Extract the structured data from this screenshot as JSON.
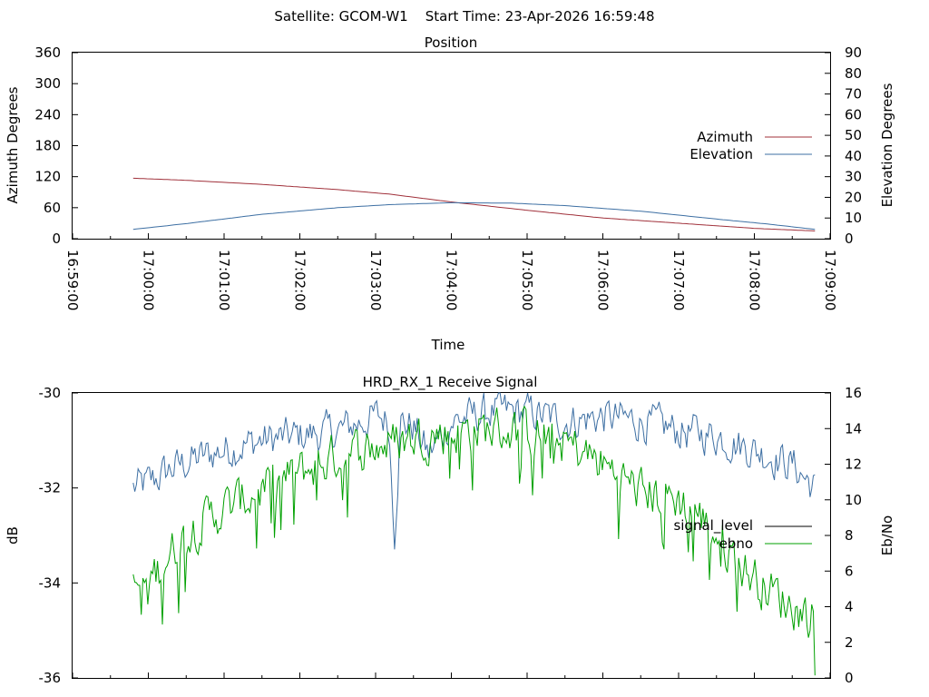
{
  "figure_title": "Satellite: GCOM-W1    Start Time: 23-Apr-2026 16:59:48",
  "colors": {
    "azimuth": "#a0303a",
    "elevation": "#3d6fa3",
    "signal_level": "#3d6fa3",
    "signal_level_legend": "#000000",
    "ebno": "#00a000"
  },
  "chart_data": [
    {
      "id": "position",
      "type": "line",
      "title": "Position",
      "xlabel": "Time",
      "ylabel": "Azimuth Degrees",
      "y2label": "Elevation Degrees",
      "xlim_minutes": [
        0,
        10
      ],
      "ylim": [
        0,
        360
      ],
      "y2lim": [
        0,
        90
      ],
      "yticks": [
        0,
        60,
        120,
        180,
        240,
        300,
        360
      ],
      "y2ticks": [
        0,
        10,
        20,
        30,
        40,
        50,
        60,
        70,
        80,
        90
      ],
      "xtick_labels": [
        "16:59:00",
        "17:00:00",
        "17:01:00",
        "17:02:00",
        "17:03:00",
        "17:04:00",
        "17:05:00",
        "17:06:00",
        "17:07:00",
        "17:08:00",
        "17:09:00"
      ],
      "legend_position": "center-right",
      "series": [
        {
          "name": "Azimuth",
          "axis": "left",
          "x_minutes": [
            0.8,
            1.5,
            2.5,
            3.5,
            4.2,
            5.0,
            6.0,
            7.0,
            8.0,
            9.0,
            9.8
          ],
          "values": [
            117,
            113,
            105,
            95,
            86,
            71,
            55,
            40,
            30,
            20,
            15
          ]
        },
        {
          "name": "Elevation",
          "axis": "right",
          "x_minutes": [
            0.8,
            1.5,
            2.5,
            3.5,
            4.2,
            5.0,
            5.8,
            6.5,
            7.5,
            8.5,
            9.2,
            9.8
          ],
          "values": [
            4.5,
            7.3,
            11.8,
            15.0,
            16.5,
            17.4,
            17.2,
            16.0,
            13.3,
            9.5,
            7.0,
            4.5
          ]
        }
      ]
    },
    {
      "id": "receive-signal",
      "type": "line",
      "title": "HRD_RX_1 Receive Signal",
      "ylabel": "dB",
      "y2label": "Eb/No",
      "xlim_minutes": [
        0,
        10
      ],
      "ylim": [
        -36,
        -30
      ],
      "y2lim": [
        0,
        16
      ],
      "yticks": [
        -36,
        -34,
        -32,
        -30
      ],
      "y2ticks": [
        0,
        2,
        4,
        6,
        8,
        10,
        12,
        14,
        16
      ],
      "legend_position": "center-right",
      "series": [
        {
          "name": "signal_level",
          "axis": "left",
          "x_minutes": [
            0.8,
            1.0,
            1.3,
            1.6,
            2.0,
            2.5,
            3.0,
            3.5,
            4.0,
            4.3,
            4.5,
            4.7,
            5.0,
            5.5,
            6.0,
            6.5,
            7.0,
            7.5,
            8.0,
            8.5,
            9.0,
            9.5,
            9.8
          ],
          "values": [
            -32.0,
            -31.9,
            -31.6,
            -31.4,
            -31.2,
            -31.0,
            -30.9,
            -30.8,
            -30.5,
            -30.6,
            -30.7,
            -31.3,
            -30.6,
            -30.4,
            -30.4,
            -30.6,
            -30.5,
            -30.6,
            -30.8,
            -30.9,
            -31.2,
            -31.5,
            -32.0
          ]
        },
        {
          "name": "ebno",
          "axis": "right",
          "x_minutes": [
            0.8,
            1.0,
            1.3,
            1.6,
            2.0,
            2.5,
            3.0,
            3.5,
            4.0,
            4.5,
            5.0,
            5.5,
            6.0,
            6.5,
            7.0,
            7.5,
            8.0,
            8.3,
            8.6,
            8.9,
            9.2,
            9.5,
            9.8
          ],
          "values": [
            5.0,
            5.5,
            7.0,
            8.5,
            9.5,
            10.5,
            11.5,
            12.5,
            13.0,
            13.5,
            13.8,
            14.0,
            13.8,
            13.2,
            12.0,
            10.5,
            10.0,
            9.0,
            7.5,
            6.0,
            5.0,
            4.0,
            3.5
          ]
        }
      ]
    }
  ]
}
